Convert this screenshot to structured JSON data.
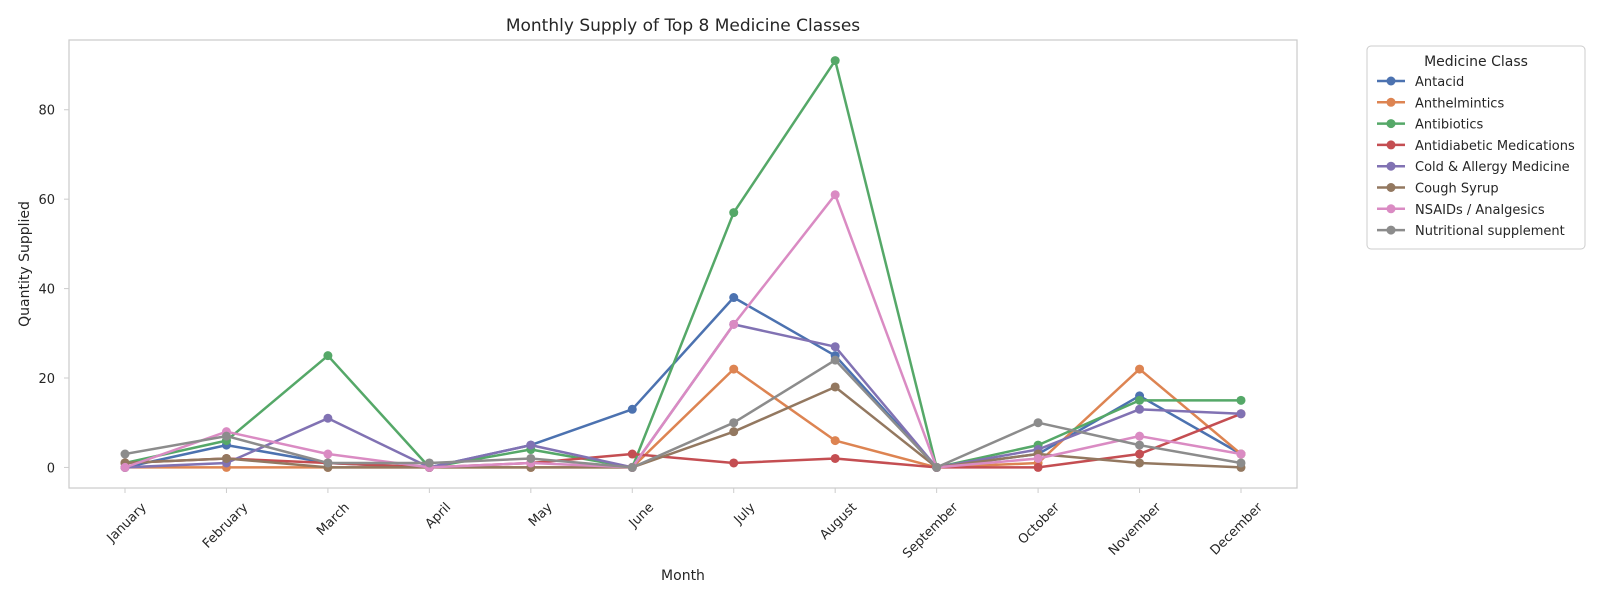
{
  "chart_data": {
    "type": "line",
    "title": "Monthly Supply of Top 8 Medicine Classes",
    "xlabel": "Month",
    "ylabel": "Quantity Supplied",
    "categories": [
      "January",
      "February",
      "March",
      "April",
      "May",
      "June",
      "July",
      "August",
      "September",
      "October",
      "November",
      "December"
    ],
    "ylim": [
      -4.6,
      95.6
    ],
    "yticks": [
      0,
      20,
      40,
      60,
      80
    ],
    "grid": false,
    "legend": {
      "title": "Medicine Class",
      "placement": "outside-top-right"
    },
    "series": [
      {
        "name": "Antacid",
        "color": "#4C72B0",
        "values": [
          0,
          5,
          1,
          0,
          5,
          13,
          38,
          25,
          0,
          3,
          16,
          3
        ]
      },
      {
        "name": "Anthelmintics",
        "color": "#DD8452",
        "values": [
          0,
          0,
          0,
          0,
          0,
          0,
          22,
          6,
          0,
          1,
          22,
          3
        ]
      },
      {
        "name": "Antibiotics",
        "color": "#55A868",
        "values": [
          1,
          6,
          25,
          0,
          4,
          0,
          57,
          91,
          0,
          5,
          15,
          15
        ]
      },
      {
        "name": "Antidiabetic Medications",
        "color": "#C44E52",
        "values": [
          1,
          2,
          1,
          0,
          1,
          3,
          1,
          2,
          0,
          0,
          3,
          12
        ]
      },
      {
        "name": "Cold & Allergy Medicine",
        "color": "#8172B3",
        "values": [
          0,
          1,
          11,
          0,
          5,
          0,
          32,
          27,
          0,
          4,
          13,
          12
        ]
      },
      {
        "name": "Cough Syrup",
        "color": "#937860",
        "values": [
          1,
          2,
          0,
          0,
          0,
          0,
          8,
          18,
          0,
          3,
          1,
          0
        ]
      },
      {
        "name": "NSAIDs / Analgesics",
        "color": "#DA8BC3",
        "values": [
          0,
          8,
          3,
          0,
          1,
          0,
          32,
          61,
          0,
          2,
          7,
          3
        ]
      },
      {
        "name": "Nutritional supplement",
        "color": "#8C8C8C",
        "values": [
          3,
          7,
          1,
          1,
          2,
          0,
          10,
          24,
          0,
          10,
          5,
          1
        ]
      }
    ]
  }
}
